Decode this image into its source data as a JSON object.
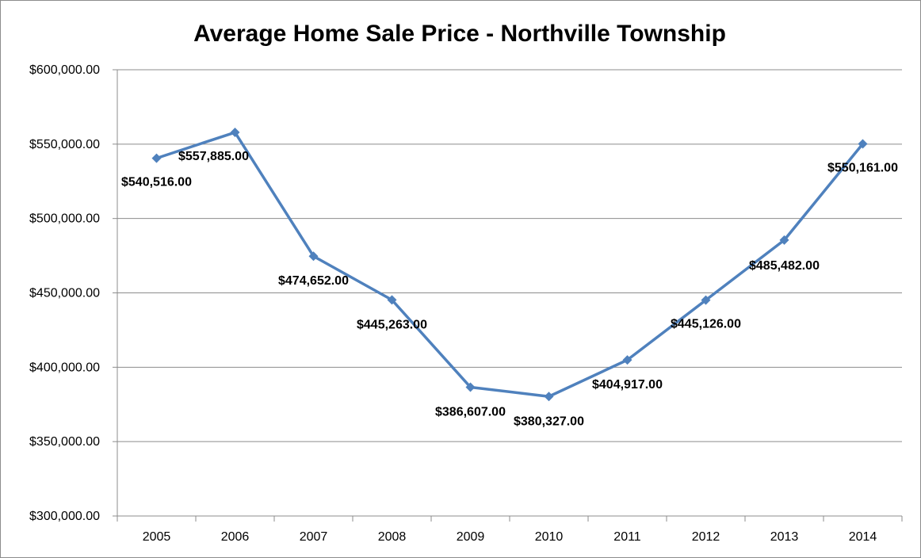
{
  "chart_data": {
    "type": "line",
    "title": "Average Home Sale Price - Northville Township",
    "xlabel": "",
    "ylabel": "",
    "categories": [
      "2005",
      "2006",
      "2007",
      "2008",
      "2009",
      "2010",
      "2011",
      "2012",
      "2013",
      "2014"
    ],
    "series": [
      {
        "values": [
          540516,
          557885,
          474652,
          445263,
          386607,
          380327,
          404917,
          445126,
          485482,
          550161
        ],
        "color": "#4f81bd",
        "marker": "diamond"
      }
    ],
    "data_labels": [
      "$540,516.00",
      "$557,885.00",
      "$474,652.00",
      "$445,263.00",
      "$386,607.00",
      "$380,327.00",
      "$404,917.00",
      "$445,126.00",
      "$485,482.00",
      "$550,161.00"
    ],
    "yticks": [
      300000,
      350000,
      400000,
      450000,
      500000,
      550000,
      600000
    ],
    "ytick_labels": [
      "$300,000.00",
      "$350,000.00",
      "$400,000.00",
      "$450,000.00",
      "$500,000.00",
      "$550,000.00",
      "$600,000.00"
    ],
    "ylim": [
      300000,
      600000
    ],
    "grid": true,
    "legend": false
  }
}
